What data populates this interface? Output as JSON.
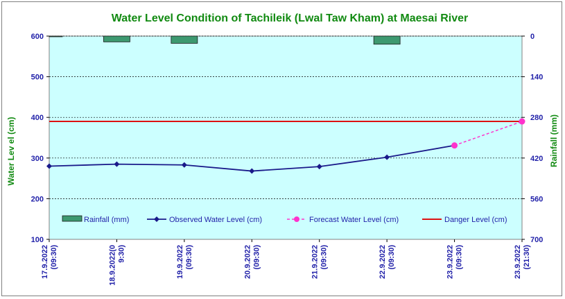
{
  "chart_data": {
    "type": "line",
    "title": "Water Level Condition of Tachileik  (Lwal Taw Kham) at Maesai  River",
    "ylabel": "Water Lev el (cm)",
    "y2label": "Rainfall (mm)",
    "ylim": [
      100,
      600
    ],
    "y2lim": [
      0,
      700
    ],
    "yticks": [
      100,
      200,
      300,
      400,
      500,
      600
    ],
    "y2ticks": [
      0,
      140,
      280,
      420,
      560,
      700
    ],
    "y2_inverted": true,
    "grid": true,
    "legend_position": "bottom",
    "categories": [
      [
        "17.9.2022",
        "(09:30)"
      ],
      [
        "18.9.2022(0",
        "9:30)"
      ],
      [
        "19.9.2022",
        "(09:30)"
      ],
      [
        "20.9.2022",
        "(09:30)"
      ],
      [
        "21.9.2022",
        "(09:30)"
      ],
      [
        "22.9.2022",
        "(09:30)"
      ],
      [
        "23.9.2022",
        "(09:30)"
      ],
      [
        "23.9.2022",
        "(21:30)"
      ]
    ],
    "series": [
      {
        "name": "Rainfall (mm)",
        "type": "bar",
        "axis": "y2",
        "values": [
          1,
          20,
          25,
          null,
          null,
          28,
          null,
          null
        ]
      },
      {
        "name": "Observed Water Level (cm)",
        "type": "line",
        "axis": "y",
        "values": [
          280,
          285,
          283,
          268,
          279,
          302,
          331,
          null
        ]
      },
      {
        "name": "Forecast Water Level (cm)",
        "type": "line",
        "axis": "y",
        "style": "dashed",
        "values": [
          null,
          null,
          null,
          null,
          null,
          null,
          331,
          390
        ]
      },
      {
        "name": "Danger Level (cm)",
        "type": "line",
        "axis": "y",
        "values": [
          390,
          390,
          390,
          390,
          390,
          390,
          390,
          390
        ]
      }
    ],
    "colors": {
      "plot_background": "#ccffff",
      "rainfall": "#3d9970",
      "observed": "#1a1a8a",
      "forecast": "#ff33cc",
      "danger": "#dd1111",
      "title": "#118a11",
      "ticks": "#1f1fa8"
    }
  }
}
